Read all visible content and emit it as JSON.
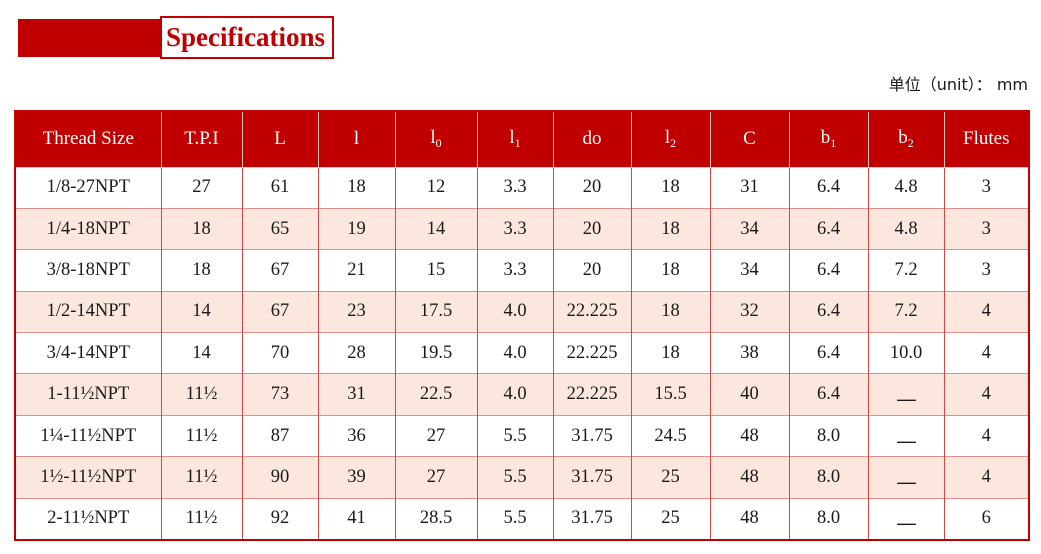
{
  "title": {
    "label": "Specifications"
  },
  "unit_note": "单位（unit）： mm",
  "colors": {
    "accent_red": "#c00000",
    "row_stripe_pink": "#fbe7dd",
    "cell_border_red": "#c84b48",
    "header_text": "#ffffff"
  },
  "table": {
    "columns": [
      {
        "base": "Thread Size",
        "sub": ""
      },
      {
        "base": "T.P.I",
        "sub": ""
      },
      {
        "base": "L",
        "sub": ""
      },
      {
        "base": "l",
        "sub": ""
      },
      {
        "base": "l",
        "sub": "0"
      },
      {
        "base": "l",
        "sub": "1"
      },
      {
        "base": "do",
        "sub": ""
      },
      {
        "base": "l",
        "sub": "2"
      },
      {
        "base": "C",
        "sub": ""
      },
      {
        "base": "b",
        "sub": "1"
      },
      {
        "base": "b",
        "sub": "2"
      },
      {
        "base": "Flutes",
        "sub": ""
      }
    ],
    "rows": [
      [
        "1/8-27NPT",
        "27",
        "61",
        "18",
        "12",
        "3.3",
        "20",
        "18",
        "31",
        "6.4",
        "4.8",
        "3"
      ],
      [
        "1/4-18NPT",
        "18",
        "65",
        "19",
        "14",
        "3.3",
        "20",
        "18",
        "34",
        "6.4",
        "4.8",
        "3"
      ],
      [
        "3/8-18NPT",
        "18",
        "67",
        "21",
        "15",
        "3.3",
        "20",
        "18",
        "34",
        "6.4",
        "7.2",
        "3"
      ],
      [
        "1/2-14NPT",
        "14",
        "67",
        "23",
        "17.5",
        "4.0",
        "22.225",
        "18",
        "32",
        "6.4",
        "7.2",
        "4"
      ],
      [
        "3/4-14NPT",
        "14",
        "70",
        "28",
        "19.5",
        "4.0",
        "22.225",
        "18",
        "38",
        "6.4",
        "10.0",
        "4"
      ],
      [
        "1-11½NPT",
        "11½",
        "73",
        "31",
        "22.5",
        "4.0",
        "22.225",
        "15.5",
        "40",
        "6.4",
        "—",
        "4"
      ],
      [
        "1¼-11½NPT",
        "11½",
        "87",
        "36",
        "27",
        "5.5",
        "31.75",
        "24.5",
        "48",
        "8.0",
        "—",
        "4"
      ],
      [
        "1½-11½NPT",
        "11½",
        "90",
        "39",
        "27",
        "5.5",
        "31.75",
        "25",
        "48",
        "8.0",
        "—",
        "4"
      ],
      [
        "2-11½NPT",
        "11½",
        "92",
        "41",
        "28.5",
        "5.5",
        "31.75",
        "25",
        "48",
        "8.0",
        "—",
        "6"
      ]
    ]
  }
}
